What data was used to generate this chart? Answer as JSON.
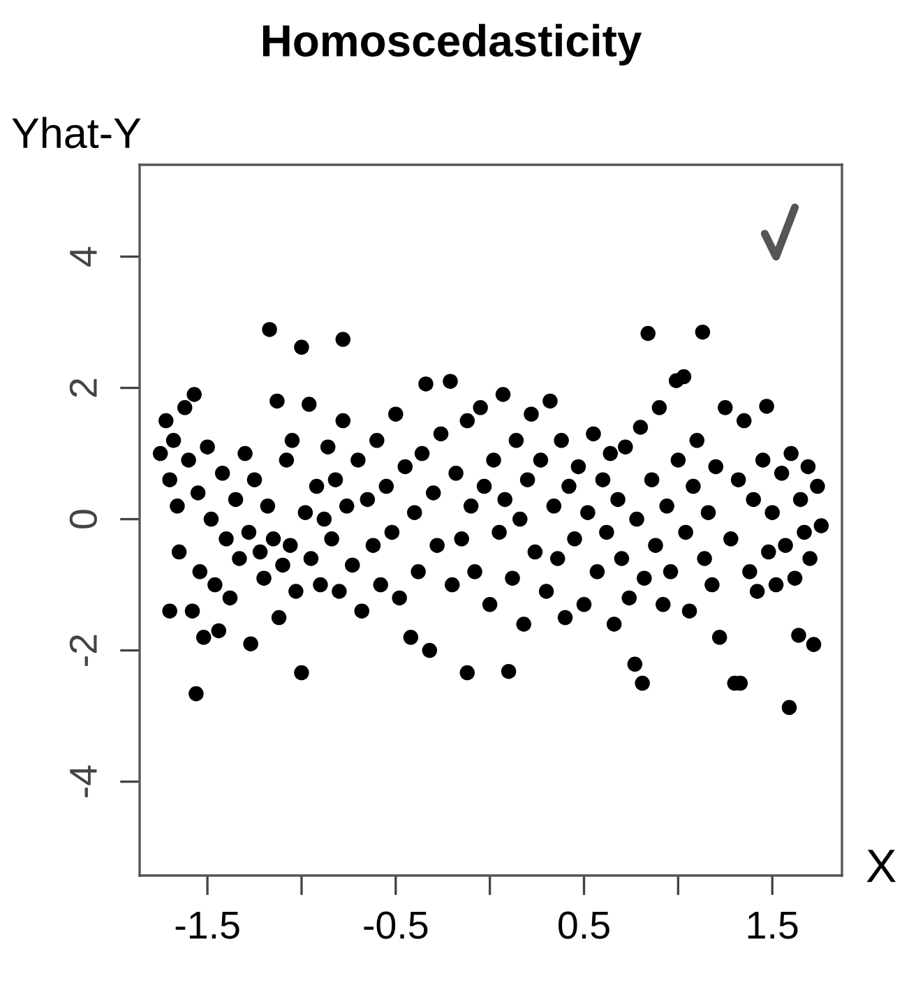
{
  "chart_data": {
    "type": "scatter",
    "title": "Homoscedasticity",
    "xlabel": "X",
    "ylabel": "Yhat-Y",
    "xlim": [
      -1.86,
      1.87
    ],
    "ylim": [
      -5.43,
      5.4
    ],
    "xticks": [
      -1.5,
      {
        "value": -1,
        "label": null
      },
      -0.5,
      {
        "value": 0,
        "label": null
      },
      0.5,
      {
        "value": 1,
        "label": null
      },
      1.5
    ],
    "yticks": [
      -4,
      -2,
      0,
      2,
      4
    ],
    "grid": false,
    "marker": "circle",
    "series": [
      {
        "color": "#000000",
        "x": [
          -1.75,
          -1.72,
          -1.7,
          -1.68,
          -1.66,
          -1.65,
          -1.62,
          -1.6,
          -1.58,
          -1.57,
          -1.55,
          -1.54,
          -1.52,
          -1.5,
          -1.48,
          -1.46,
          -1.44,
          -1.42,
          -1.4,
          -1.38,
          -1.35,
          -1.33,
          -1.3,
          -1.28,
          -1.27,
          -1.25,
          -1.56,
          -1.7,
          -1.22,
          -1.2,
          -1.18,
          -1.17,
          -1.15,
          -1.13,
          -1.12,
          -1.1,
          -1.08,
          -1.06,
          -1.05,
          -1.03,
          -1.0,
          -1.0,
          -0.98,
          -0.96,
          -0.95,
          -0.92,
          -0.9,
          -0.88,
          -0.86,
          -0.84,
          -0.82,
          -0.8,
          -0.78,
          -0.78,
          -0.76,
          -0.73,
          -0.7,
          -0.68,
          -0.65,
          -0.62,
          -0.6,
          -0.58,
          -0.55,
          -0.52,
          -0.5,
          -0.48,
          -0.45,
          -0.42,
          -0.4,
          -0.38,
          -0.36,
          -0.34,
          -0.32,
          -0.3,
          -0.28,
          -0.26,
          -0.21,
          -0.2,
          -0.18,
          -0.15,
          -0.12,
          -0.12,
          -0.1,
          -0.08,
          -0.05,
          -0.03,
          0.0,
          0.02,
          0.05,
          0.07,
          0.08,
          0.1,
          0.12,
          0.14,
          0.16,
          0.18,
          0.2,
          0.22,
          0.24,
          0.27,
          0.3,
          0.32,
          0.34,
          0.36,
          0.38,
          0.4,
          0.42,
          0.45,
          0.47,
          0.5,
          0.52,
          0.55,
          0.57,
          0.6,
          0.62,
          0.64,
          0.66,
          0.68,
          0.7,
          0.72,
          0.74,
          0.77,
          0.81,
          0.78,
          0.8,
          0.82,
          0.84,
          0.86,
          0.88,
          0.9,
          0.92,
          0.94,
          0.96,
          0.99,
          1.0,
          1.03,
          1.04,
          1.06,
          1.08,
          1.1,
          1.13,
          1.14,
          1.16,
          1.18,
          1.2,
          1.22,
          1.25,
          1.28,
          1.3,
          1.33,
          1.32,
          1.35,
          1.38,
          1.4,
          1.42,
          1.45,
          1.47,
          1.48,
          1.5,
          1.52,
          1.55,
          1.57,
          1.59,
          1.6,
          1.62,
          1.64,
          1.65,
          1.67,
          1.69,
          1.7,
          1.72,
          1.74,
          1.76
        ],
        "values": [
          1.0,
          1.5,
          0.6,
          1.2,
          0.2,
          -0.5,
          1.7,
          0.9,
          -1.4,
          1.9,
          0.4,
          -0.8,
          -1.8,
          1.1,
          0.0,
          -1.0,
          -1.7,
          0.7,
          -0.3,
          -1.2,
          0.3,
          -0.6,
          1.0,
          -0.2,
          -1.9,
          0.6,
          -2.66,
          -1.4,
          -0.5,
          -0.9,
          0.2,
          2.89,
          -0.3,
          1.8,
          -1.5,
          -0.7,
          0.9,
          -0.4,
          1.2,
          -1.1,
          2.62,
          -2.34,
          0.1,
          1.75,
          -0.6,
          0.5,
          -1.0,
          0.0,
          1.1,
          -0.3,
          0.6,
          -1.1,
          2.74,
          1.5,
          0.2,
          -0.7,
          0.9,
          -1.4,
          0.3,
          -0.4,
          1.2,
          -1.0,
          0.5,
          -0.2,
          1.6,
          -1.2,
          0.8,
          -1.8,
          0.1,
          -0.8,
          1.0,
          2.06,
          -2.0,
          0.4,
          -0.4,
          1.3,
          2.1,
          -1.0,
          0.7,
          -0.3,
          -2.34,
          1.5,
          0.2,
          -0.8,
          1.7,
          0.5,
          -1.3,
          0.9,
          -0.2,
          1.9,
          0.3,
          -2.32,
          -0.9,
          1.2,
          0.0,
          -1.6,
          0.6,
          1.6,
          -0.5,
          0.9,
          -1.1,
          1.8,
          0.2,
          -0.6,
          1.2,
          -1.5,
          0.5,
          -0.3,
          0.8,
          -1.3,
          0.1,
          1.3,
          -0.8,
          0.6,
          -0.2,
          1.0,
          -1.6,
          0.3,
          -0.6,
          1.1,
          -1.2,
          -2.21,
          -2.5,
          0.0,
          1.4,
          -0.9,
          2.83,
          0.6,
          -0.4,
          1.7,
          -1.3,
          0.2,
          -0.8,
          2.11,
          0.9,
          2.17,
          -0.2,
          -1.4,
          0.5,
          1.2,
          2.85,
          -0.6,
          0.1,
          -1.0,
          0.8,
          -1.8,
          1.7,
          -0.3,
          -2.5,
          -2.5,
          0.6,
          1.5,
          -0.8,
          0.3,
          -1.1,
          0.9,
          1.72,
          -0.5,
          0.1,
          -1.0,
          0.7,
          -0.4,
          -2.87,
          1.0,
          -0.9,
          -1.77,
          0.3,
          -0.2,
          0.8,
          -0.6,
          -1.91,
          0.5,
          -0.1
        ]
      }
    ]
  }
}
